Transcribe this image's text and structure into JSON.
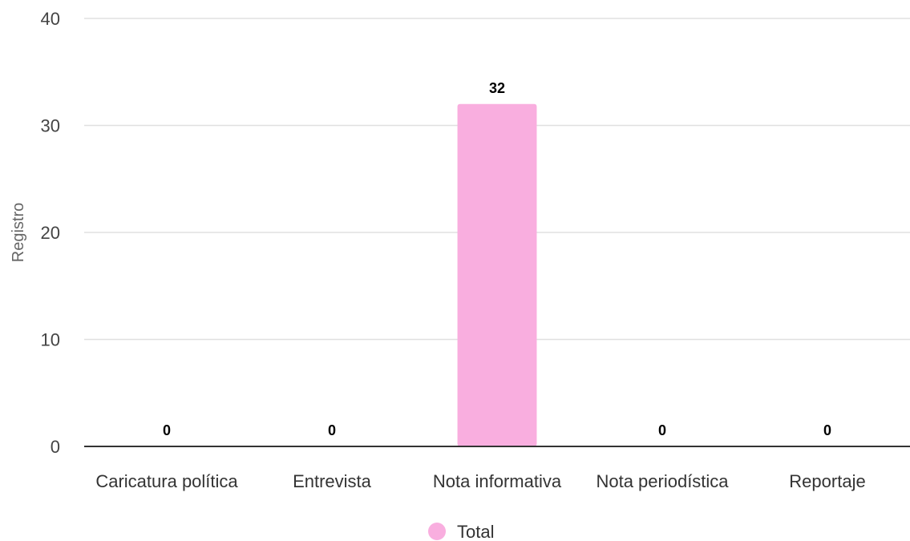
{
  "chart_data": {
    "type": "bar",
    "title": "",
    "xlabel": "",
    "ylabel": "Registro",
    "categories": [
      "Caricatura política",
      "Entrevista",
      "Nota informativa",
      "Nota periodística",
      "Reportaje"
    ],
    "series": [
      {
        "name": "Total",
        "values": [
          0,
          0,
          32,
          0,
          0
        ]
      }
    ],
    "ylim": [
      0,
      40
    ],
    "yticks": [
      0,
      10,
      20,
      30,
      40
    ],
    "grid": true,
    "legend": "bottom",
    "data_labels": true,
    "colors": {
      "bar": "#f9aedf",
      "grid": "#e0e0e0",
      "axis": "#333333"
    }
  }
}
